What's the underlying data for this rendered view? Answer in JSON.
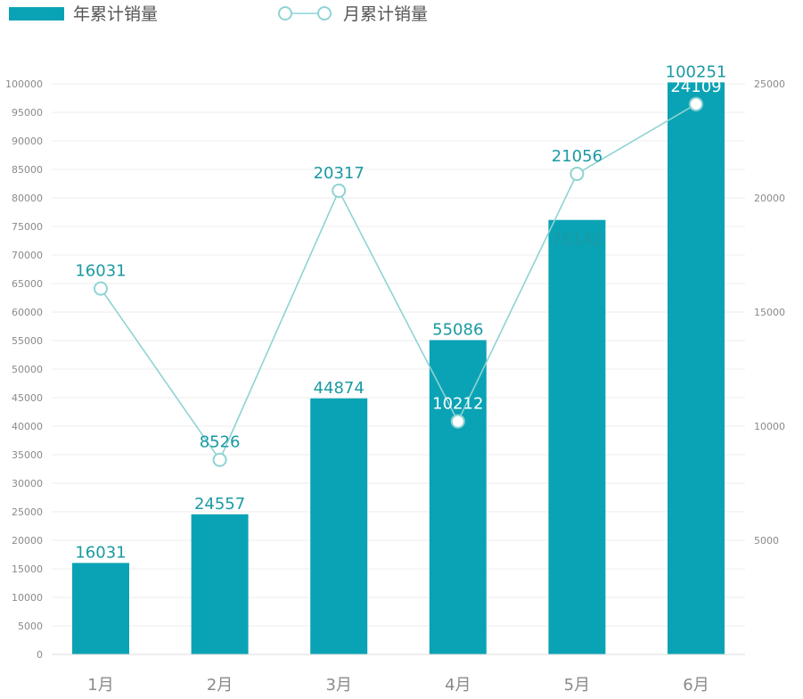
{
  "legend": {
    "bar_series_label": "年累计销量",
    "line_series_label": "月累计销量"
  },
  "colors": {
    "bar": "#0aa3b5",
    "line": "#8fd3d3",
    "marker_fill": "#ffffff",
    "bar_label": "#1a9aa3",
    "grid": "#ececec",
    "tick_text": "#8a8a8a"
  },
  "chart_data": {
    "type": "bar",
    "categories": [
      "1月",
      "2月",
      "3月",
      "4月",
      "5月",
      "6月"
    ],
    "series": [
      {
        "name": "年累计销量",
        "type": "bar",
        "axis": "left",
        "values": [
          16031,
          24557,
          44874,
          55086,
          76142,
          100251
        ],
        "label_position": [
          "above",
          "above",
          "above",
          "above",
          "inside",
          "above"
        ]
      },
      {
        "name": "月累计销量",
        "type": "line",
        "axis": "right",
        "values": [
          16031,
          8526,
          20317,
          10212,
          21056,
          24109
        ],
        "marker": "hollow-circle"
      }
    ],
    "y_left": {
      "min": 0,
      "max": 100000,
      "step": 5000,
      "ticks": [
        "0",
        "5000",
        "10000",
        "15000",
        "20000",
        "25000",
        "30000",
        "35000",
        "40000",
        "45000",
        "50000",
        "55000",
        "60000",
        "65000",
        "70000",
        "75000",
        "80000",
        "85000",
        "90000",
        "95000",
        "100000"
      ]
    },
    "y_right": {
      "min": 0,
      "max": 25000,
      "ticks": [
        "5000",
        "10000",
        "15000",
        "20000",
        "25000"
      ]
    },
    "grid": true,
    "legend_position": "top-left"
  }
}
